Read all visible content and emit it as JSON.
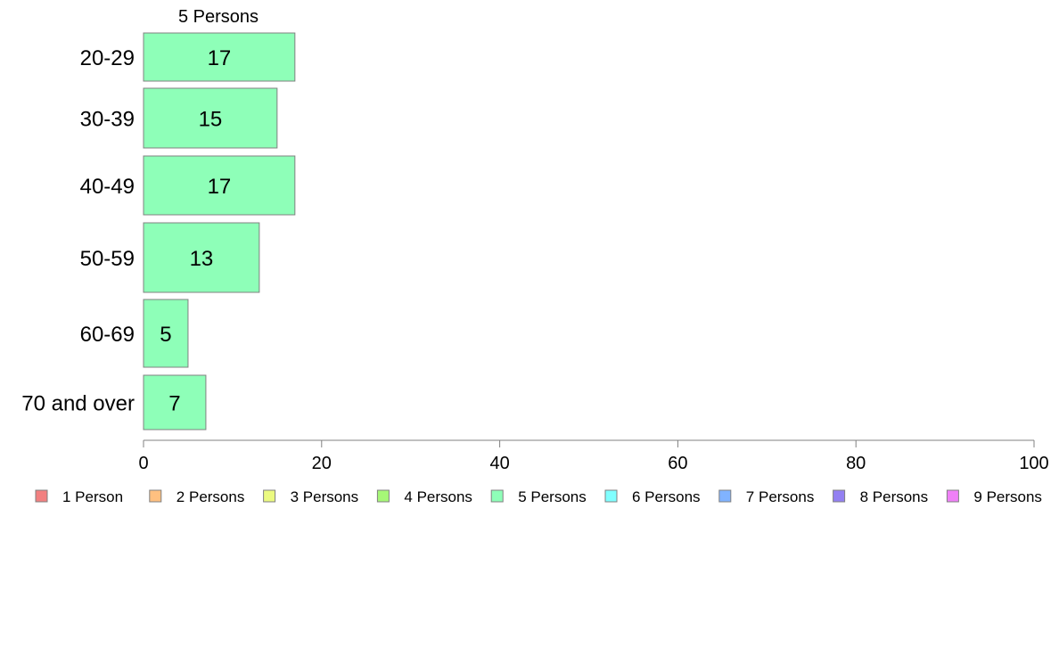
{
  "chart_data": {
    "type": "bar",
    "orientation": "horizontal",
    "title": "5 Persons",
    "categories": [
      "20-29",
      "30-39",
      "40-49",
      "50-59",
      "60-69",
      "70 and over"
    ],
    "series": [
      {
        "name": "5 Persons",
        "values": [
          17,
          15,
          17,
          13,
          5,
          7
        ],
        "color": "#8effb8"
      }
    ],
    "xlim": [
      0,
      100
    ],
    "x_ticks": [
      "0",
      "20",
      "40",
      "60",
      "80",
      "100"
    ],
    "xlabel": "",
    "ylabel": "",
    "grid": false,
    "legend_position": "bottom",
    "legend": [
      {
        "label": "1 Person",
        "color": "#f28080"
      },
      {
        "label": "2 Persons",
        "color": "#ffc080"
      },
      {
        "label": "3 Persons",
        "color": "#ebfa80"
      },
      {
        "label": "4 Persons",
        "color": "#a6f777"
      },
      {
        "label": "5 Persons",
        "color": "#8effb8"
      },
      {
        "label": "6 Persons",
        "color": "#80ffff"
      },
      {
        "label": "7 Persons",
        "color": "#80b3ff"
      },
      {
        "label": "8 Persons",
        "color": "#9380f2"
      },
      {
        "label": "9 Persons",
        "color": "#ef80f7"
      }
    ]
  }
}
